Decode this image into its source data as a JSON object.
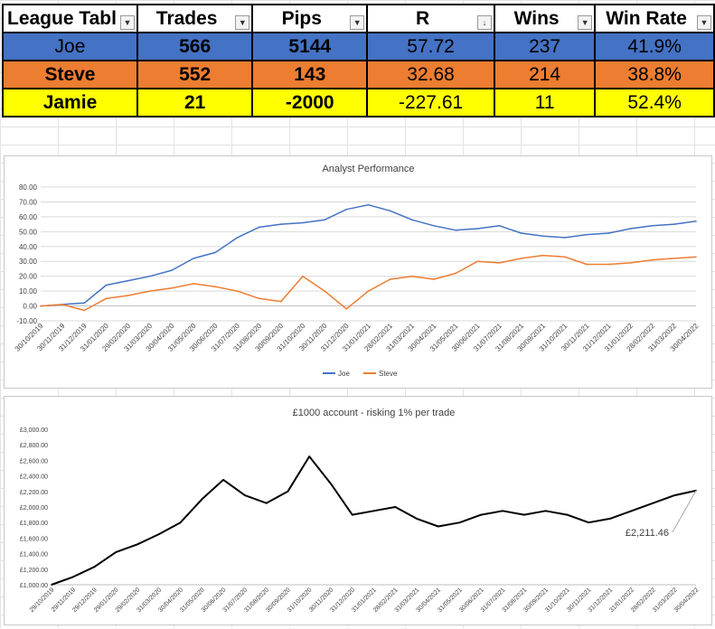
{
  "table": {
    "headers": [
      "League Tabl",
      "Trades",
      "Pips",
      "R",
      "Wins",
      "Win Rate"
    ],
    "rows": [
      {
        "name": "Joe",
        "trades": "566",
        "pips": "5144",
        "r": "57.72",
        "wins": "237",
        "win_rate": "41.9%",
        "color": "#4472c4"
      },
      {
        "name": "Steve",
        "trades": "552",
        "pips": "143",
        "r": "32.68",
        "wins": "214",
        "win_rate": "38.8%",
        "color": "#ed7d31"
      },
      {
        "name": "Jamie",
        "trades": "21",
        "pips": "-2000",
        "r": "-227.61",
        "wins": "11",
        "win_rate": "52.4%",
        "color": "#ffff00"
      }
    ]
  },
  "chart_data": [
    {
      "type": "line",
      "title": "Analyst Performance",
      "ylim": [
        -10,
        80
      ],
      "yticks": [
        "-10.00",
        "0.00",
        "10.00",
        "20.00",
        "30.00",
        "40.00",
        "50.00",
        "60.00",
        "70.00",
        "80.00"
      ],
      "x_labels": [
        "30/10/2019",
        "30/11/2019",
        "31/12/2019",
        "31/01/2020",
        "29/02/2020",
        "31/03/2020",
        "30/04/2020",
        "31/05/2020",
        "30/06/2020",
        "31/07/2020",
        "31/08/2020",
        "30/09/2020",
        "31/10/2020",
        "30/11/2020",
        "31/12/2020",
        "31/01/2021",
        "28/02/2021",
        "31/03/2021",
        "30/04/2021",
        "31/05/2021",
        "30/06/2021",
        "31/07/2021",
        "31/08/2021",
        "30/09/2021",
        "31/10/2021",
        "30/11/2021",
        "31/12/2021",
        "31/01/2022",
        "28/02/2022",
        "31/03/2022",
        "30/04/2022"
      ],
      "legend_position": "bottom",
      "grid": true,
      "series": [
        {
          "name": "Joe",
          "color": "#4472c4",
          "values": [
            0,
            1,
            2,
            14,
            17,
            20,
            24,
            32,
            36,
            46,
            53,
            55,
            56,
            58,
            65,
            68,
            64,
            58,
            54,
            51,
            52,
            54,
            49,
            47,
            46,
            48,
            49,
            52,
            54,
            55,
            57
          ]
        },
        {
          "name": "Steve",
          "color": "#ed7d31",
          "values": [
            0,
            1,
            -3,
            5,
            7,
            10,
            12,
            15,
            13,
            10,
            5,
            3,
            20,
            10,
            -2,
            10,
            18,
            20,
            18,
            22,
            30,
            29,
            32,
            34,
            33,
            28,
            28,
            29,
            31,
            32,
            33
          ]
        }
      ]
    },
    {
      "type": "line",
      "title": "£1000 account - risking 1% per trade",
      "ylim": [
        1000,
        3000
      ],
      "yticks": [
        "£1,000.00",
        "£1,200.00",
        "£1,400.00",
        "£1,600.00",
        "£1,800.00",
        "£2,000.00",
        "£2,200.00",
        "£2,400.00",
        "£2,600.00",
        "£2,800.00",
        "£3,000.00"
      ],
      "x_labels": [
        "29/10/2019",
        "29/11/2019",
        "29/12/2019",
        "29/01/2020",
        "29/02/2020",
        "31/03/2020",
        "30/04/2020",
        "31/05/2020",
        "30/06/2020",
        "31/07/2020",
        "31/08/2020",
        "30/09/2020",
        "31/10/2020",
        "30/11/2020",
        "31/12/2020",
        "31/01/2021",
        "28/02/2021",
        "31/03/2021",
        "30/04/2021",
        "31/05/2021",
        "30/06/2021",
        "31/07/2021",
        "31/08/2021",
        "30/09/2021",
        "31/10/2021",
        "30/11/2021",
        "31/12/2021",
        "31/01/2022",
        "28/02/2022",
        "31/03/2022",
        "30/04/2022"
      ],
      "grid": false,
      "annotation": "£2,211.46",
      "series": [
        {
          "color": "#000000",
          "values": [
            1000,
            1100,
            1230,
            1420,
            1520,
            1650,
            1800,
            2100,
            2350,
            2150,
            2050,
            2200,
            2650,
            2300,
            1900,
            1950,
            2000,
            1850,
            1750,
            1800,
            1900,
            1950,
            1900,
            1950,
            1900,
            1800,
            1850,
            1950,
            2050,
            2150,
            2211
          ]
        }
      ]
    }
  ]
}
